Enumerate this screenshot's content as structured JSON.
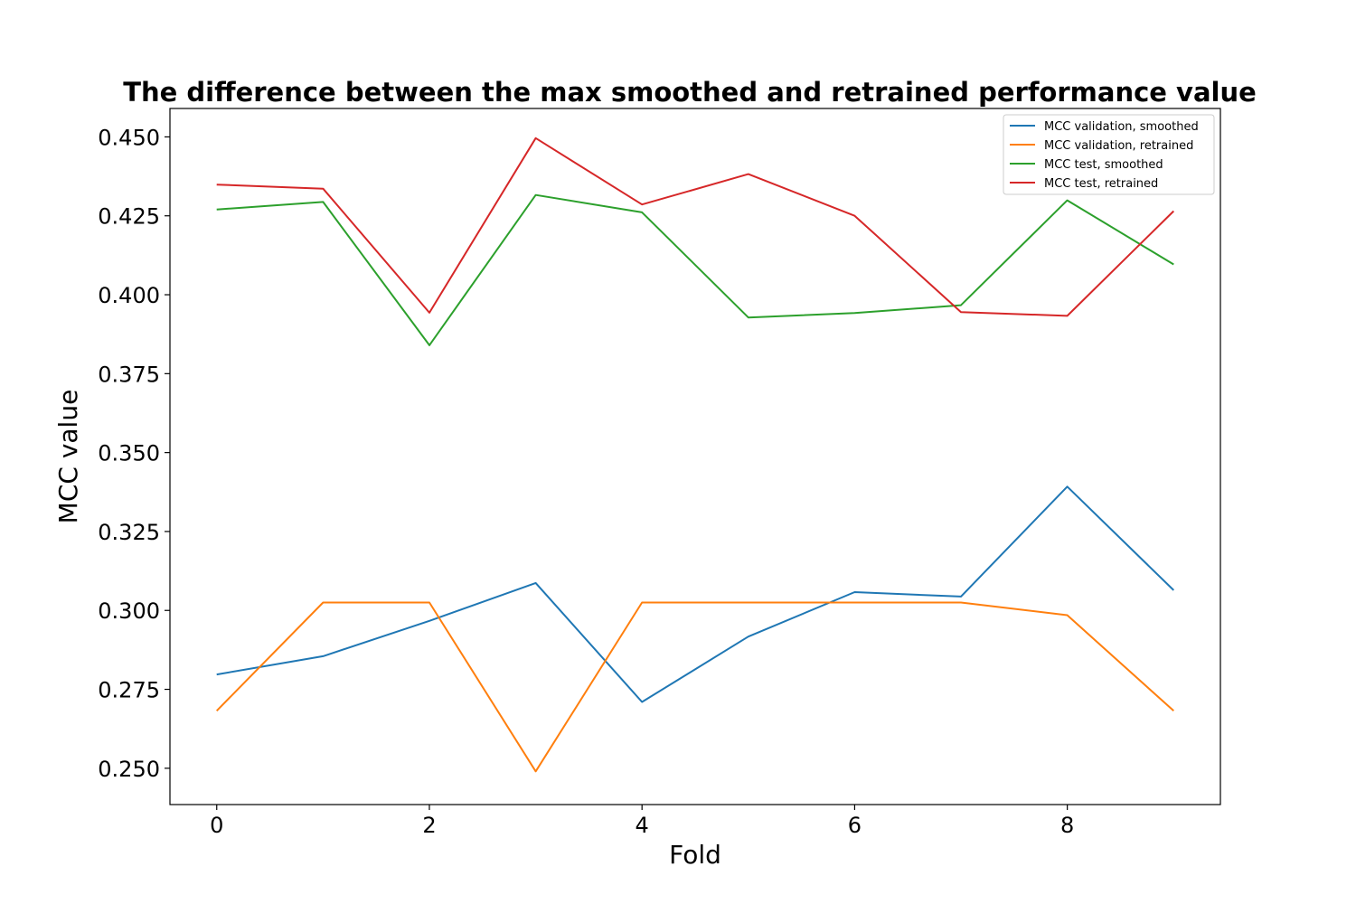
{
  "chart_data": {
    "type": "line",
    "title": "The difference between the max smoothed and retrained performance value",
    "xlabel": "Fold",
    "ylabel": "MCC value",
    "x": [
      0,
      1,
      2,
      3,
      4,
      5,
      6,
      7,
      8,
      9
    ],
    "xlim": [
      -0.44,
      9.44
    ],
    "ylim": [
      0.2385,
      0.459
    ],
    "xticks": [
      0,
      2,
      4,
      6,
      8
    ],
    "xtick_labels": [
      "0",
      "2",
      "4",
      "6",
      "8"
    ],
    "yticks": [
      0.25,
      0.275,
      0.3,
      0.325,
      0.35,
      0.375,
      0.4,
      0.425,
      0.45
    ],
    "ytick_labels": [
      "0.250",
      "0.275",
      "0.300",
      "0.325",
      "0.350",
      "0.375",
      "0.400",
      "0.425",
      "0.450"
    ],
    "grid": false,
    "legend_position": "top-right",
    "series": [
      {
        "name": "MCC validation, smoothed",
        "color": "#1f77b4",
        "values": [
          0.2797,
          0.2855,
          0.2967,
          0.3087,
          0.271,
          0.2917,
          0.3058,
          0.3044,
          0.3392,
          0.3064
        ]
      },
      {
        "name": "MCC validation, retrained",
        "color": "#ff7f0e",
        "values": [
          0.2682,
          0.3025,
          0.3025,
          0.249,
          0.3025,
          0.3025,
          0.3025,
          0.3025,
          0.2985,
          0.2682
        ]
      },
      {
        "name": "MCC test, smoothed",
        "color": "#2ca02c",
        "values": [
          0.427,
          0.4294,
          0.384,
          0.4316,
          0.4261,
          0.3928,
          0.3942,
          0.3967,
          0.4299,
          0.4096
        ]
      },
      {
        "name": "MCC test, retrained",
        "color": "#d62728",
        "values": [
          0.4349,
          0.4336,
          0.3943,
          0.4496,
          0.4286,
          0.4382,
          0.425,
          0.3945,
          0.3933,
          0.4265
        ]
      }
    ]
  }
}
